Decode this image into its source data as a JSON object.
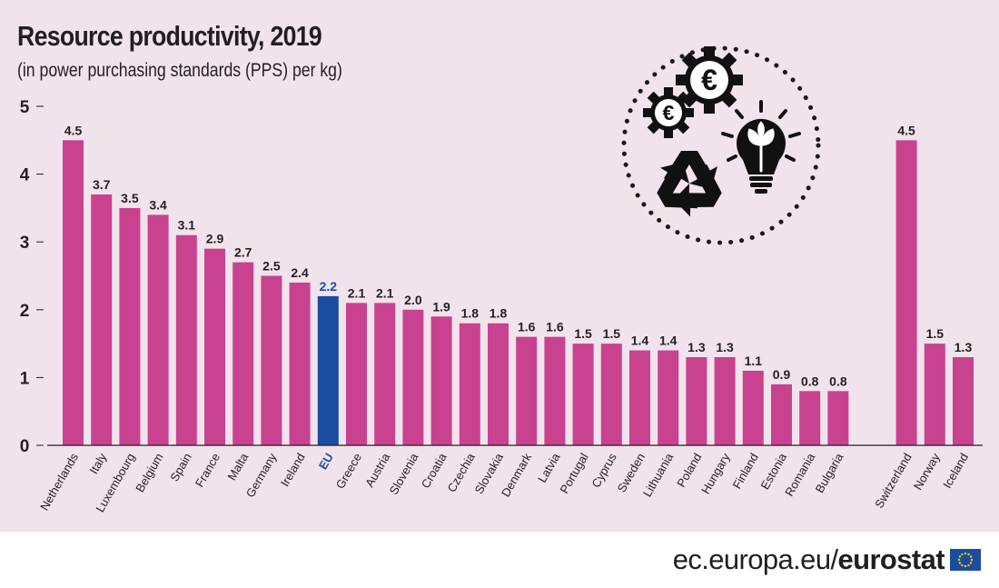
{
  "header": {
    "title": "Resource productivity, 2019",
    "subtitle": "(in power purchasing standards (PPS) per kg)"
  },
  "footer": {
    "source": "ec.europa.eu/",
    "brand": "eurostat"
  },
  "icons": {
    "illustration": "circular-economy-icon",
    "gears": "euro-gears-icon",
    "recycle": "recycle-icon",
    "bulb": "plant-lightbulb-icon",
    "flag": "eu-flag-icon"
  },
  "colors": {
    "bar": "#c8428f",
    "highlight": "#1a4ca0",
    "background": "#f1e3ec",
    "text": "#231f20"
  },
  "chart_data": {
    "type": "bar",
    "title": "Resource productivity, 2019",
    "subtitle": "(in power purchasing standards (PPS) per kg)",
    "ylim": [
      0,
      5
    ],
    "yticks": [
      "0",
      "1",
      "2",
      "3",
      "4",
      "5"
    ],
    "grid": false,
    "highlight_category": "EU",
    "categories": [
      "Netherlands",
      "Italy",
      "Luxembourg",
      "Belgium",
      "Spain",
      "France",
      "Malta",
      "Germany",
      "Ireland",
      "EU",
      "Greece",
      "Austria",
      "Slovenia",
      "Croatia",
      "Czechia",
      "Slovakia",
      "Denmark",
      "Latvia",
      "Portugal",
      "Cyprus",
      "Sweden",
      "Lithuania",
      "Poland",
      "Hungary",
      "Finland",
      "Estonia",
      "Romania",
      "Bulgaria",
      "Switzerland",
      "Norway",
      "Iceland"
    ],
    "values": [
      4.5,
      3.7,
      3.5,
      3.4,
      3.1,
      2.9,
      2.7,
      2.5,
      2.4,
      2.2,
      2.1,
      2.1,
      2.0,
      1.9,
      1.8,
      1.8,
      1.6,
      1.6,
      1.5,
      1.5,
      1.4,
      1.4,
      1.3,
      1.3,
      1.1,
      0.9,
      0.8,
      0.8,
      4.5,
      1.5,
      1.3
    ],
    "value_labels": [
      "4.5",
      "3.7",
      "3.5",
      "3.4",
      "3.1",
      "2.9",
      "2.7",
      "2.5",
      "2.4",
      "2.2",
      "2.1",
      "2.1",
      "2.0",
      "1.9",
      "1.8",
      "1.8",
      "1.6",
      "1.6",
      "1.5",
      "1.5",
      "1.4",
      "1.4",
      "1.3",
      "1.3",
      "1.1",
      "0.9",
      "0.8",
      "0.8",
      "4.5",
      "1.5",
      "1.3"
    ]
  }
}
